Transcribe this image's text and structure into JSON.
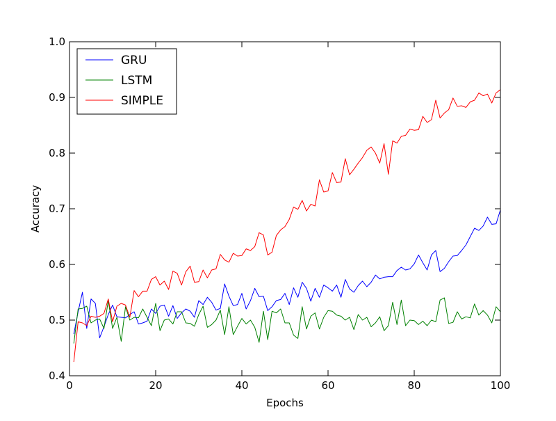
{
  "chart_data": {
    "type": "line",
    "title": "",
    "xlabel": "Epochs",
    "ylabel": "Accuracy",
    "xlim": [
      0,
      100
    ],
    "ylim": [
      0.4,
      1.0
    ],
    "xticks": [
      0,
      20,
      40,
      60,
      80,
      100
    ],
    "yticks": [
      0.4,
      0.5,
      0.6,
      0.7,
      0.8,
      0.9,
      1.0
    ],
    "grid": false,
    "legend_position": "top-left",
    "x": [
      1,
      2,
      3,
      4,
      5,
      6,
      7,
      8,
      9,
      10,
      11,
      12,
      13,
      14,
      15,
      16,
      17,
      18,
      19,
      20,
      21,
      22,
      23,
      24,
      25,
      26,
      27,
      28,
      29,
      30,
      31,
      32,
      33,
      34,
      35,
      36,
      37,
      38,
      39,
      40,
      41,
      42,
      43,
      44,
      45,
      46,
      47,
      48,
      49,
      50,
      51,
      52,
      53,
      54,
      55,
      56,
      57,
      58,
      59,
      60,
      61,
      62,
      63,
      64,
      65,
      66,
      67,
      68,
      69,
      70,
      71,
      72,
      73,
      74,
      75,
      76,
      77,
      78,
      79,
      80,
      81,
      82,
      83,
      84,
      85,
      86,
      87,
      88,
      89,
      90,
      91,
      92,
      93,
      94,
      95,
      96,
      97,
      98,
      99,
      100
    ],
    "series": [
      {
        "name": "GRU",
        "color": "#0000ff",
        "values": [
          0.475,
          0.515,
          0.55,
          0.485,
          0.538,
          0.53,
          0.468,
          0.488,
          0.51,
          0.527,
          0.506,
          0.505,
          0.504,
          0.51,
          0.515,
          0.493,
          0.495,
          0.498,
          0.52,
          0.512,
          0.525,
          0.527,
          0.507,
          0.526,
          0.503,
          0.513,
          0.52,
          0.516,
          0.505,
          0.535,
          0.528,
          0.541,
          0.532,
          0.518,
          0.521,
          0.565,
          0.543,
          0.526,
          0.528,
          0.548,
          0.52,
          0.535,
          0.557,
          0.542,
          0.543,
          0.517,
          0.524,
          0.535,
          0.537,
          0.548,
          0.528,
          0.558,
          0.541,
          0.568,
          0.557,
          0.534,
          0.557,
          0.541,
          0.563,
          0.558,
          0.552,
          0.563,
          0.541,
          0.573,
          0.556,
          0.55,
          0.562,
          0.57,
          0.56,
          0.568,
          0.581,
          0.574,
          0.577,
          0.578,
          0.578,
          0.589,
          0.595,
          0.59,
          0.592,
          0.601,
          0.617,
          0.603,
          0.59,
          0.617,
          0.625,
          0.587,
          0.593,
          0.605,
          0.615,
          0.616,
          0.625,
          0.635,
          0.65,
          0.665,
          0.661,
          0.669,
          0.685,
          0.672,
          0.673,
          0.698
        ]
      },
      {
        "name": "LSTM",
        "color": "#008000",
        "values": [
          0.458,
          0.52,
          0.521,
          0.525,
          0.495,
          0.5,
          0.502,
          0.485,
          0.535,
          0.485,
          0.505,
          0.462,
          0.524,
          0.5,
          0.505,
          0.504,
          0.52,
          0.505,
          0.49,
          0.53,
          0.481,
          0.5,
          0.502,
          0.493,
          0.515,
          0.515,
          0.495,
          0.494,
          0.489,
          0.51,
          0.525,
          0.487,
          0.492,
          0.5,
          0.518,
          0.474,
          0.524,
          0.474,
          0.489,
          0.503,
          0.493,
          0.5,
          0.487,
          0.46,
          0.516,
          0.465,
          0.516,
          0.513,
          0.52,
          0.495,
          0.495,
          0.473,
          0.467,
          0.524,
          0.484,
          0.507,
          0.513,
          0.484,
          0.505,
          0.517,
          0.516,
          0.509,
          0.507,
          0.5,
          0.505,
          0.483,
          0.51,
          0.5,
          0.505,
          0.488,
          0.495,
          0.506,
          0.481,
          0.49,
          0.532,
          0.492,
          0.536,
          0.49,
          0.5,
          0.499,
          0.492,
          0.498,
          0.49,
          0.5,
          0.497,
          0.536,
          0.54,
          0.494,
          0.496,
          0.515,
          0.502,
          0.506,
          0.504,
          0.529,
          0.509,
          0.517,
          0.509,
          0.495,
          0.524,
          0.515
        ]
      },
      {
        "name": "SIMPLE",
        "color": "#ff0000",
        "values": [
          0.425,
          0.497,
          0.495,
          0.49,
          0.507,
          0.505,
          0.507,
          0.512,
          0.538,
          0.497,
          0.525,
          0.53,
          0.527,
          0.505,
          0.553,
          0.542,
          0.552,
          0.552,
          0.573,
          0.578,
          0.563,
          0.57,
          0.555,
          0.588,
          0.584,
          0.563,
          0.587,
          0.597,
          0.568,
          0.569,
          0.59,
          0.576,
          0.59,
          0.592,
          0.618,
          0.608,
          0.604,
          0.62,
          0.615,
          0.616,
          0.628,
          0.625,
          0.632,
          0.657,
          0.653,
          0.617,
          0.622,
          0.652,
          0.662,
          0.668,
          0.681,
          0.703,
          0.699,
          0.715,
          0.696,
          0.708,
          0.705,
          0.752,
          0.73,
          0.732,
          0.765,
          0.747,
          0.748,
          0.79,
          0.761,
          0.771,
          0.782,
          0.792,
          0.805,
          0.811,
          0.8,
          0.782,
          0.817,
          0.762,
          0.822,
          0.818,
          0.83,
          0.832,
          0.843,
          0.841,
          0.842,
          0.866,
          0.855,
          0.86,
          0.895,
          0.863,
          0.872,
          0.878,
          0.899,
          0.884,
          0.885,
          0.882,
          0.892,
          0.895,
          0.908,
          0.903,
          0.906,
          0.89,
          0.908,
          0.914
        ]
      }
    ]
  }
}
